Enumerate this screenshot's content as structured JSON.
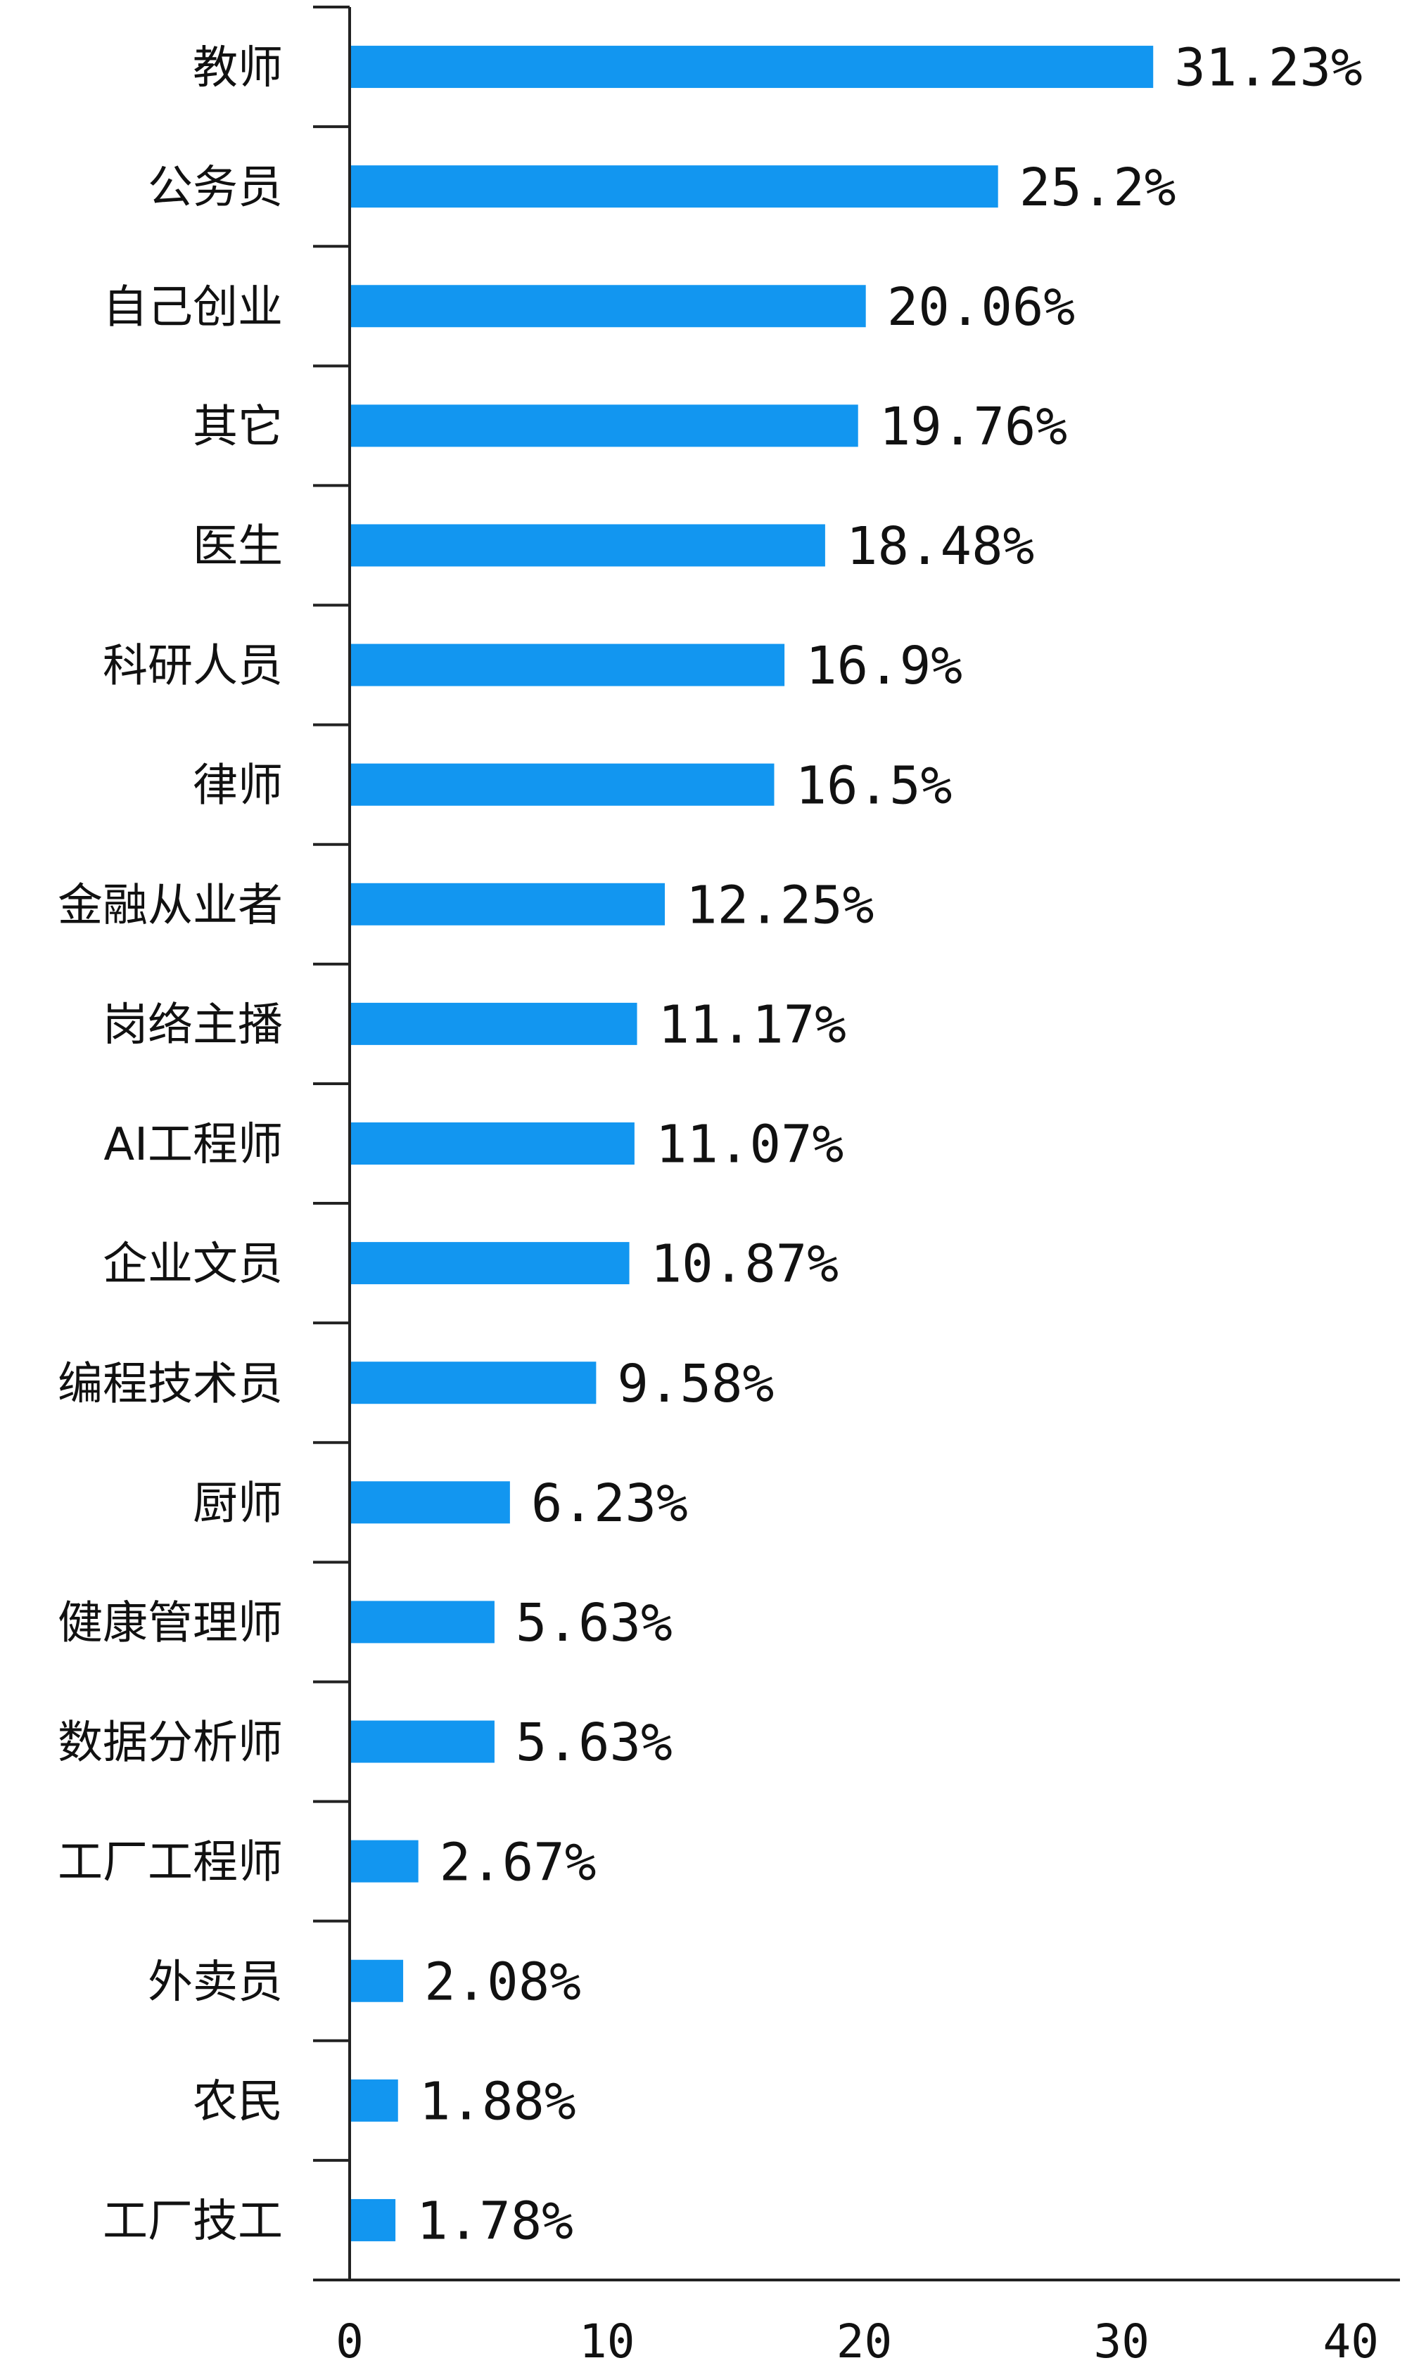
{
  "chart_data": {
    "type": "bar",
    "orientation": "horizontal",
    "title": "",
    "xlabel": "",
    "ylabel": "",
    "xlim": [
      0,
      40
    ],
    "x_ticks": [
      "0",
      "10",
      "20",
      "30",
      "40"
    ],
    "grid": false,
    "bar_color": "#1296f0",
    "categories": [
      "教师",
      "公务员",
      "自己创业",
      "其它",
      "医生",
      "科研人员",
      "律师",
      "金融从业者",
      "岗络主播",
      "AI工程师",
      "企业文员",
      "编程技术员",
      "厨师",
      "健康管理师",
      "数据分析师",
      "工厂工程师",
      "外卖员",
      "农民",
      "工厂技工"
    ],
    "values": [
      31.23,
      25.2,
      20.06,
      19.76,
      18.48,
      16.9,
      16.5,
      12.25,
      11.17,
      11.07,
      10.87,
      9.58,
      6.23,
      5.63,
      5.63,
      2.67,
      2.08,
      1.88,
      1.78
    ],
    "value_labels": [
      "31.23%",
      "25.2%",
      "20.06%",
      "19.76%",
      "18.48%",
      "16.9%",
      "16.5%",
      "12.25%",
      "11.17%",
      "11.07%",
      "10.87%",
      "9.58%",
      "6.23%",
      "5.63%",
      "5.63%",
      "2.67%",
      "2.08%",
      "1.88%",
      "1.78%"
    ]
  }
}
